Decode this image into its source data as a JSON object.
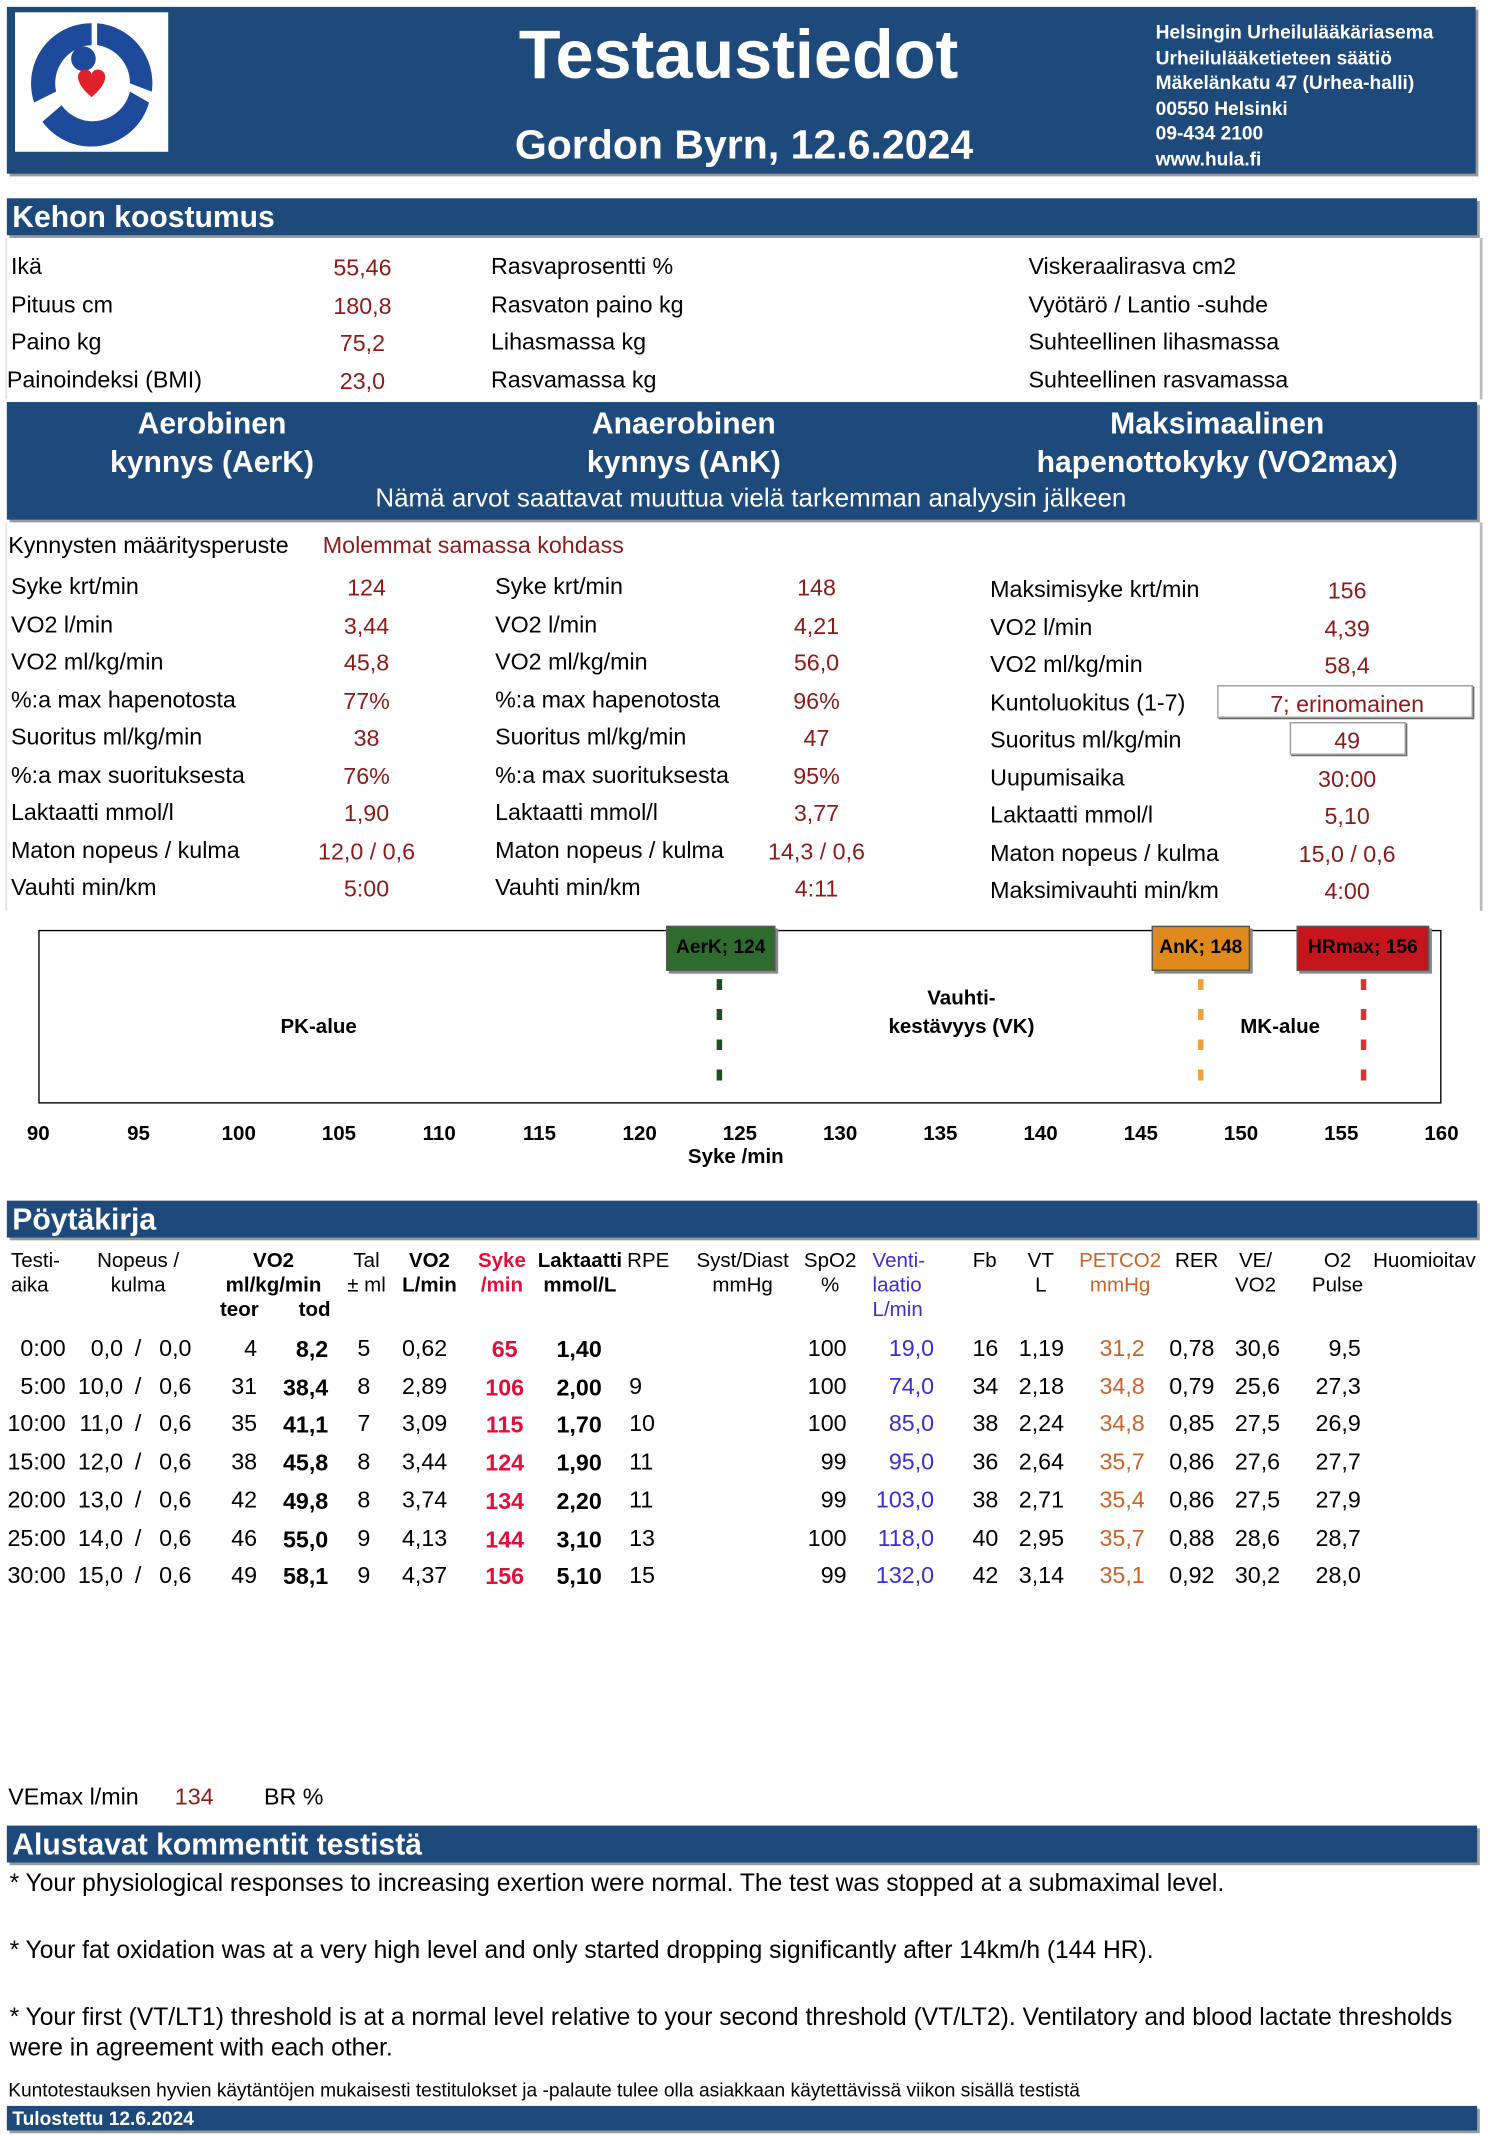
{
  "header": {
    "title": "Testaustiedot",
    "subtitle": "Gordon Byrn, 12.6.2024",
    "organization": [
      "Helsingin Urheilulääkäriasema",
      "Urheilulääketieteen säätiö",
      "Mäkelänkatu 47 (Urhea-halli)",
      "00550 Helsinki",
      "09-434 2100",
      "www.hula.fi"
    ]
  },
  "body_composition": {
    "title": "Kehon koostumus",
    "measured": [
      [
        "Ikä",
        "55,46"
      ],
      [
        "Pituus cm",
        "180,8"
      ],
      [
        "Paino kg",
        "75,2"
      ],
      [
        "Painoindeksi (BMI)",
        "23,0"
      ]
    ],
    "fat_labels": [
      "Rasvaprosentti %",
      "Rasvaton paino kg",
      "Lihasmassa kg",
      "Rasvamassa kg"
    ],
    "relative_labels": [
      "Viskeraalirasva cm2",
      "Vyötärö / Lantio -suhde",
      "Suhteellinen lihasmassa",
      "Suhteellinen rasvamassa"
    ]
  },
  "thresholds": {
    "headings": [
      [
        "Aerobinen",
        "kynnys (AerK)"
      ],
      [
        "Anaerobinen",
        "kynnys (AnK)"
      ],
      [
        "Maksimaalinen",
        "hapenottokyky (VO2max)"
      ]
    ],
    "note": "Nämä arvot saattavat muuttua vielä tarkemman analyysin jälkeen",
    "basis_label": "Kynnysten määritysperuste",
    "basis_value": "Molemmat samassa kohdass",
    "columns": [
      [
        [
          "Syke krt/min",
          "124"
        ],
        [
          "VO2 l/min",
          "3,44"
        ],
        [
          "VO2 ml/kg/min",
          "45,8"
        ],
        [
          "%:a max hapenotosta",
          "77%"
        ],
        [
          "Suoritus ml/kg/min",
          "38"
        ],
        [
          "%:a max suorituksesta",
          "76%"
        ],
        [
          "Laktaatti mmol/l",
          "1,90"
        ],
        [
          "Maton nopeus / kulma",
          "12,0 / 0,6"
        ],
        [
          "Vauhti min/km",
          "5:00"
        ]
      ],
      [
        [
          "Syke krt/min",
          "148"
        ],
        [
          "VO2 l/min",
          "4,21"
        ],
        [
          "VO2 ml/kg/min",
          "56,0"
        ],
        [
          "%:a max hapenotosta",
          "96%"
        ],
        [
          "Suoritus ml/kg/min",
          "47"
        ],
        [
          "%:a max suorituksesta",
          "95%"
        ],
        [
          "Laktaatti mmol/l",
          "3,77"
        ],
        [
          "Maton nopeus / kulma",
          "14,3 / 0,6"
        ],
        [
          "Vauhti min/km",
          "4:11"
        ]
      ],
      [
        [
          "Maksimisyke krt/min",
          "156"
        ],
        [
          "VO2 l/min",
          "4,39"
        ],
        [
          "VO2 ml/kg/min",
          "58,4"
        ],
        [
          "Kuntoluokitus (1-7)",
          "7; erinomainen"
        ],
        [
          "Suoritus ml/kg/min",
          "49"
        ],
        [
          "Uupumisaika",
          "30:00"
        ],
        [
          "Laktaatti mmol/l",
          "5,10"
        ],
        [
          "Maton nopeus / kulma",
          "15,0 / 0,6"
        ],
        [
          "Maksimivauhti min/km",
          "4:00"
        ]
      ]
    ]
  },
  "zones": {
    "markers": [
      "AerK; 124",
      "AnK; 148",
      "HRmax; 156"
    ],
    "zone_labels": [
      [
        "PK-alue"
      ],
      [
        "Vauhti-",
        "kestävyys (VK)"
      ],
      [
        "MK-alue"
      ]
    ],
    "ticks": [
      90,
      95,
      100,
      105,
      110,
      115,
      120,
      125,
      130,
      135,
      140,
      145,
      150,
      155,
      160
    ],
    "axis_label": "Syke /min"
  },
  "protocol": {
    "title": "Pöytäkirja",
    "separator": "/",
    "headers": [
      [
        "Testi-",
        "aika"
      ],
      [
        "Nopeus /",
        "kulma"
      ],
      [
        "VO2",
        "ml/kg/min"
      ],
      [
        "teor"
      ],
      [
        "tod"
      ],
      [
        "Tal",
        "± ml"
      ],
      [
        "VO2",
        "L/min"
      ],
      [
        "Syke",
        "/min"
      ],
      [
        "Laktaatti",
        "mmol/L"
      ],
      [
        "RPE"
      ],
      [
        "Syst/Diast",
        "mmHg"
      ],
      [
        "SpO2",
        "%"
      ],
      [
        "Venti-",
        "laatio",
        "L/min"
      ],
      [
        "Fb"
      ],
      [
        "VT",
        "L"
      ],
      [
        "PETCO2",
        "mmHg"
      ],
      [
        "RER"
      ],
      [
        "VE/",
        "VO2"
      ],
      [
        "O2",
        "Pulse"
      ],
      [
        "Huomioitav"
      ]
    ],
    "rows": [
      [
        "0:00",
        "0,0",
        "0,0",
        "4",
        "8,2",
        "5",
        "0,62",
        "65",
        "1,40",
        null,
        "100",
        "19,0",
        "16",
        "1,19",
        "31,2",
        "0,78",
        "30,6",
        "9,5"
      ],
      [
        "5:00",
        "10,0",
        "0,6",
        "31",
        "38,4",
        "8",
        "2,89",
        "106",
        "2,00",
        "9",
        "100",
        "74,0",
        "34",
        "2,18",
        "34,8",
        "0,79",
        "25,6",
        "27,3"
      ],
      [
        "10:00",
        "11,0",
        "0,6",
        "35",
        "41,1",
        "7",
        "3,09",
        "115",
        "1,70",
        "10",
        "100",
        "85,0",
        "38",
        "2,24",
        "34,8",
        "0,85",
        "27,5",
        "26,9"
      ],
      [
        "15:00",
        "12,0",
        "0,6",
        "38",
        "45,8",
        "8",
        "3,44",
        "124",
        "1,90",
        "11",
        "99",
        "95,0",
        "36",
        "2,64",
        "35,7",
        "0,86",
        "27,6",
        "27,7"
      ],
      [
        "20:00",
        "13,0",
        "0,6",
        "42",
        "49,8",
        "8",
        "3,74",
        "134",
        "2,20",
        "11",
        "99",
        "103,0",
        "38",
        "2,71",
        "35,4",
        "0,86",
        "27,5",
        "27,9"
      ],
      [
        "25:00",
        "14,0",
        "0,6",
        "46",
        "55,0",
        "9",
        "4,13",
        "144",
        "3,10",
        "13",
        "100",
        "118,0",
        "40",
        "2,95",
        "35,7",
        "0,88",
        "28,6",
        "28,7"
      ],
      [
        "30:00",
        "15,0",
        "0,6",
        "49",
        "58,1",
        "9",
        "4,37",
        "156",
        "5,10",
        "15",
        "99",
        "132,0",
        "42",
        "3,14",
        "35,1",
        "0,92",
        "30,2",
        "28,0"
      ]
    ],
    "vemax_label": "VEmax l/min",
    "vemax_value": "134",
    "br_label": "BR %"
  },
  "comments": {
    "title": "Alustavat kommentit testistä",
    "items": [
      "* Your physiological responses to increasing exertion were normal. The test was stopped at a submaximal level.",
      "* Your fat oxidation was at a very high level and only started dropping significantly after 14km/h (144 HR).",
      "* Your first (VT/LT1) threshold is at a normal level relative to your second threshold (VT/LT2). Ventilatory and blood lactate thresholds were in agreement with each other."
    ]
  },
  "footer": {
    "note": "Kuntotestauksen hyvien käytäntöjen mukaisesti testitulokset ja -palaute tulee olla asiakkaan käytettävissä viikon sisällä testistä",
    "printed": "Tulostettu 12.6.2024"
  }
}
